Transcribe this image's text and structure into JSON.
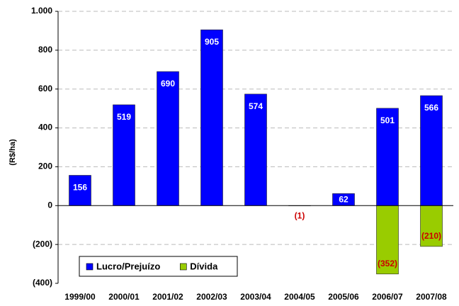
{
  "chart_data": {
    "type": "bar",
    "y_label": "(R$/ha)",
    "categories": [
      "1999/00",
      "2000/01",
      "2001/02",
      "2002/03",
      "2003/04",
      "2004/05",
      "2005/06",
      "2006/07",
      "2007/08"
    ],
    "series": [
      {
        "name": "Lucro/Prejuízo",
        "color": "#0000ff",
        "values": [
          156,
          519,
          690,
          905,
          574,
          -1,
          62,
          501,
          566
        ],
        "value_labels": [
          "156",
          "519",
          "690",
          "905",
          "574",
          "(1)",
          "62",
          "501",
          "566"
        ]
      },
      {
        "name": "Dívida",
        "color": "#99cc00",
        "values": [
          null,
          null,
          null,
          null,
          null,
          null,
          null,
          -352,
          -210
        ],
        "value_labels": [
          null,
          null,
          null,
          null,
          null,
          null,
          null,
          "(352)",
          "(210)"
        ]
      }
    ],
    "ylim": [
      -400,
      1000
    ],
    "yticks": [
      {
        "value": -400,
        "label": "(400)"
      },
      {
        "value": -200,
        "label": "(200)"
      },
      0,
      200,
      400,
      600,
      800,
      {
        "value": 1000,
        "label": "1.000"
      }
    ],
    "grid": true,
    "legend": "lower left"
  }
}
